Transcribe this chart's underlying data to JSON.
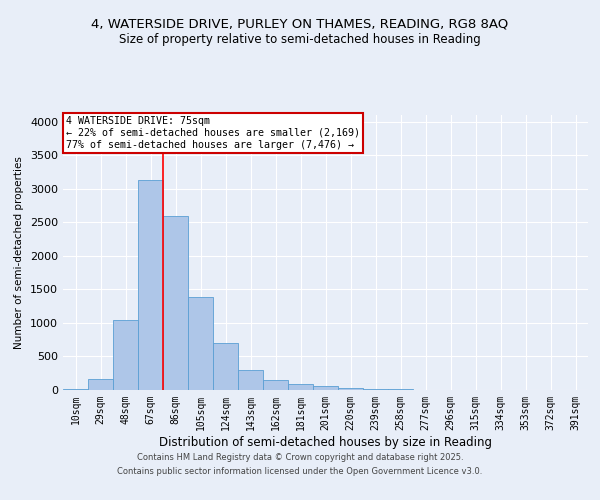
{
  "title_line1": "4, WATERSIDE DRIVE, PURLEY ON THAMES, READING, RG8 8AQ",
  "title_line2": "Size of property relative to semi-detached houses in Reading",
  "xlabel": "Distribution of semi-detached houses by size in Reading",
  "ylabel": "Number of semi-detached properties",
  "categories": [
    "10sqm",
    "29sqm",
    "48sqm",
    "67sqm",
    "86sqm",
    "105sqm",
    "124sqm",
    "143sqm",
    "162sqm",
    "181sqm",
    "201sqm",
    "220sqm",
    "239sqm",
    "258sqm",
    "277sqm",
    "296sqm",
    "315sqm",
    "334sqm",
    "353sqm",
    "372sqm",
    "391sqm"
  ],
  "values": [
    8,
    170,
    1050,
    3130,
    2590,
    1380,
    700,
    295,
    150,
    88,
    55,
    35,
    18,
    10,
    5,
    3,
    2,
    1,
    0,
    0,
    0
  ],
  "bar_color": "#aec6e8",
  "bar_edge_color": "#5a9fd4",
  "annotation_text_line1": "4 WATERSIDE DRIVE: 75sqm",
  "annotation_text_line2": "← 22% of semi-detached houses are smaller (2,169)",
  "annotation_text_line3": "77% of semi-detached houses are larger (7,476) →",
  "annotation_box_color": "#ffffff",
  "annotation_box_edge": "#cc0000",
  "ylim": [
    0,
    4100
  ],
  "yticks": [
    0,
    500,
    1000,
    1500,
    2000,
    2500,
    3000,
    3500,
    4000
  ],
  "background_color": "#e8eef8",
  "grid_color": "#ffffff",
  "footer_line1": "Contains HM Land Registry data © Crown copyright and database right 2025.",
  "footer_line2": "Contains public sector information licensed under the Open Government Licence v3.0."
}
